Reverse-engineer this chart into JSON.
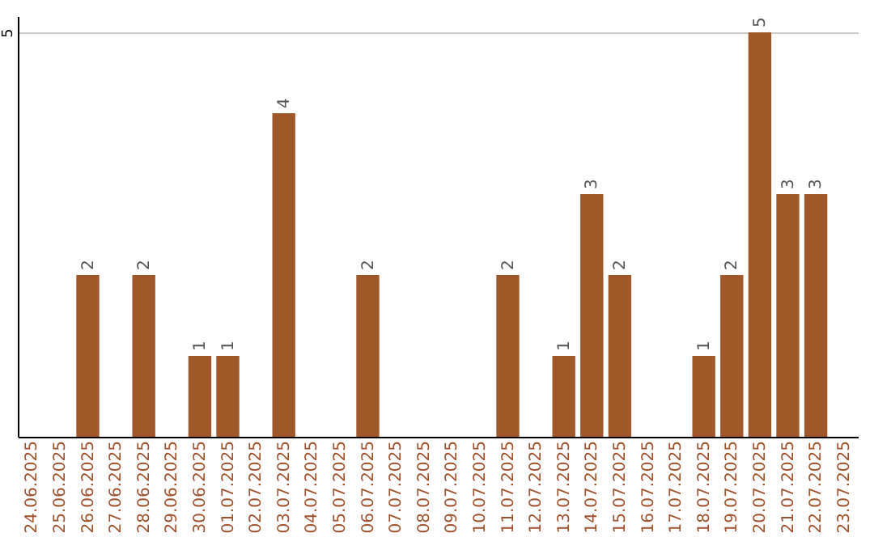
{
  "chart_data": {
    "type": "bar",
    "categories": [
      "24.06.2025",
      "25.06.2025",
      "26.06.2025",
      "27.06.2025",
      "28.06.2025",
      "29.06.2025",
      "30.06.2025",
      "01.07.2025",
      "02.07.2025",
      "03.07.2025",
      "04.07.2025",
      "05.07.2025",
      "06.07.2025",
      "07.07.2025",
      "08.07.2025",
      "09.07.2025",
      "10.07.2025",
      "11.07.2025",
      "12.07.2025",
      "13.07.2025",
      "14.07.2025",
      "15.07.2025",
      "16.07.2025",
      "17.07.2025",
      "18.07.2025",
      "19.07.2025",
      "20.07.2025",
      "21.07.2025",
      "22.07.2025",
      "23.07.2025"
    ],
    "values": [
      0,
      0,
      2,
      0,
      2,
      0,
      1,
      1,
      0,
      4,
      0,
      0,
      2,
      0,
      0,
      0,
      0,
      2,
      0,
      1,
      3,
      2,
      0,
      0,
      1,
      2,
      5,
      3,
      3,
      0
    ],
    "value_labels": [
      null,
      null,
      "2",
      null,
      "2",
      null,
      "1",
      "1",
      null,
      "4",
      null,
      null,
      "2",
      null,
      null,
      null,
      null,
      "2",
      null,
      "1",
      "3",
      "2",
      null,
      null,
      "1",
      "2",
      "5",
      "3",
      "3",
      null
    ],
    "color": "#a0582a",
    "ylim": [
      0,
      5.2
    ],
    "yticks": [
      5
    ],
    "grid": "y"
  }
}
